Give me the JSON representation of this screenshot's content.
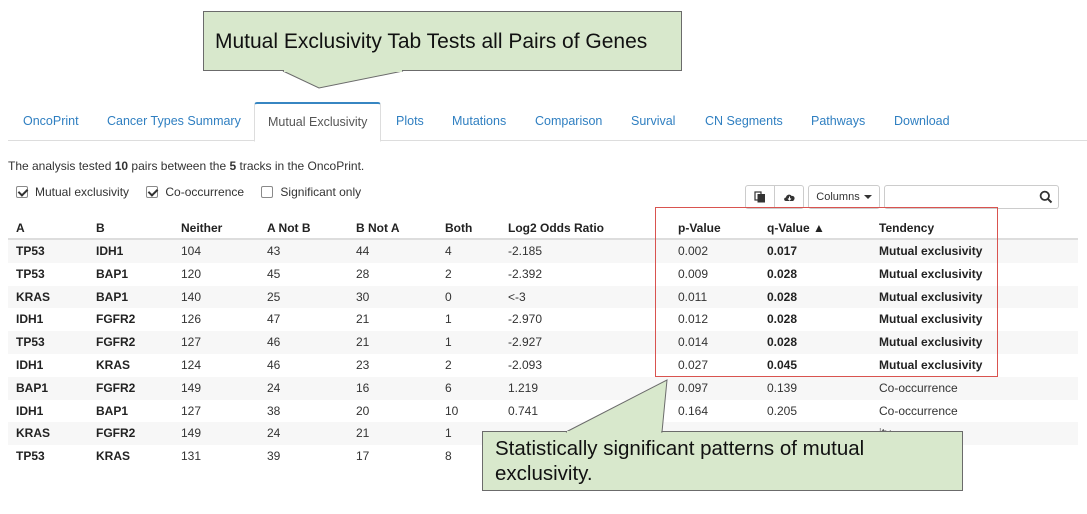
{
  "annotations": {
    "top_callout": "Mutual Exclusivity Tab Tests all Pairs of Genes",
    "bottom_callout": "Statistically significant patterns of mutual exclusivity."
  },
  "tabs": [
    {
      "label": "OncoPrint",
      "active": false
    },
    {
      "label": "Cancer Types Summary",
      "active": false
    },
    {
      "label": "Mutual Exclusivity",
      "active": true
    },
    {
      "label": "Plots",
      "active": false
    },
    {
      "label": "Mutations",
      "active": false
    },
    {
      "label": "Comparison",
      "active": false
    },
    {
      "label": "Survival",
      "active": false
    },
    {
      "label": "CN Segments",
      "active": false
    },
    {
      "label": "Pathways",
      "active": false
    },
    {
      "label": "Download",
      "active": false
    }
  ],
  "summary": {
    "prefix": "The analysis tested ",
    "pairs_count": "10",
    "middle": " pairs between the ",
    "tracks_count": "5",
    "suffix": " tracks in the OncoPrint."
  },
  "filters": [
    {
      "label": "Mutual exclusivity",
      "checked": true
    },
    {
      "label": "Co-occurrence",
      "checked": true
    },
    {
      "label": "Significant only",
      "checked": false
    }
  ],
  "toolbar": {
    "copy_icon": "copy-icon",
    "download_icon": "cloud-download-icon",
    "columns_label": "Columns",
    "search_placeholder": "",
    "search_icon": "search-icon"
  },
  "table": {
    "headers": [
      "A",
      "B",
      "Neither",
      "A Not B",
      "B Not A",
      "Both",
      "Log2 Odds Ratio",
      "p-Value",
      "q-Value ▲",
      "Tendency"
    ],
    "rows": [
      {
        "a": "TP53",
        "b": "IDH1",
        "neither": "104",
        "a_not_b": "43",
        "b_not_a": "44",
        "both": "4",
        "log2": "-2.185",
        "p": "0.002",
        "q": "0.017",
        "tendency": "Mutual exclusivity",
        "significant": true
      },
      {
        "a": "TP53",
        "b": "BAP1",
        "neither": "120",
        "a_not_b": "45",
        "b_not_a": "28",
        "both": "2",
        "log2": "-2.392",
        "p": "0.009",
        "q": "0.028",
        "tendency": "Mutual exclusivity",
        "significant": true
      },
      {
        "a": "KRAS",
        "b": "BAP1",
        "neither": "140",
        "a_not_b": "25",
        "b_not_a": "30",
        "both": "0",
        "log2": "<-3",
        "p": "0.011",
        "q": "0.028",
        "tendency": "Mutual exclusivity",
        "significant": true
      },
      {
        "a": "IDH1",
        "b": "FGFR2",
        "neither": "126",
        "a_not_b": "47",
        "b_not_a": "21",
        "both": "1",
        "log2": "-2.970",
        "p": "0.012",
        "q": "0.028",
        "tendency": "Mutual exclusivity",
        "significant": true
      },
      {
        "a": "TP53",
        "b": "FGFR2",
        "neither": "127",
        "a_not_b": "46",
        "b_not_a": "21",
        "both": "1",
        "log2": "-2.927",
        "p": "0.014",
        "q": "0.028",
        "tendency": "Mutual exclusivity",
        "significant": true
      },
      {
        "a": "IDH1",
        "b": "KRAS",
        "neither": "124",
        "a_not_b": "46",
        "b_not_a": "23",
        "both": "2",
        "log2": "-2.093",
        "p": "0.027",
        "q": "0.045",
        "tendency": "Mutual exclusivity",
        "significant": true
      },
      {
        "a": "BAP1",
        "b": "FGFR2",
        "neither": "149",
        "a_not_b": "24",
        "b_not_a": "16",
        "both": "6",
        "log2": "1.219",
        "p": "0.097",
        "q": "0.139",
        "tendency": "Co-occurrence",
        "significant": false
      },
      {
        "a": "IDH1",
        "b": "BAP1",
        "neither": "127",
        "a_not_b": "38",
        "b_not_a": "20",
        "both": "10",
        "log2": "0.741",
        "p": "0.164",
        "q": "0.205",
        "tendency": "Co-occurrence",
        "significant": false
      },
      {
        "a": "KRAS",
        "b": "FGFR2",
        "neither": "149",
        "a_not_b": "24",
        "b_not_a": "21",
        "both": "1",
        "log2": "",
        "p": "",
        "q": "",
        "tendency": "ity",
        "significant": false
      },
      {
        "a": "TP53",
        "b": "KRAS",
        "neither": "131",
        "a_not_b": "39",
        "b_not_a": "17",
        "both": "8",
        "log2": "",
        "p": "",
        "q": "",
        "tendency": "",
        "significant": false
      }
    ]
  },
  "colors": {
    "tab_link": "#2f7fc1",
    "active_tab_top": "#3786c2",
    "callout_fill": "#d8e8cc",
    "highlight_border": "#d9534f"
  }
}
